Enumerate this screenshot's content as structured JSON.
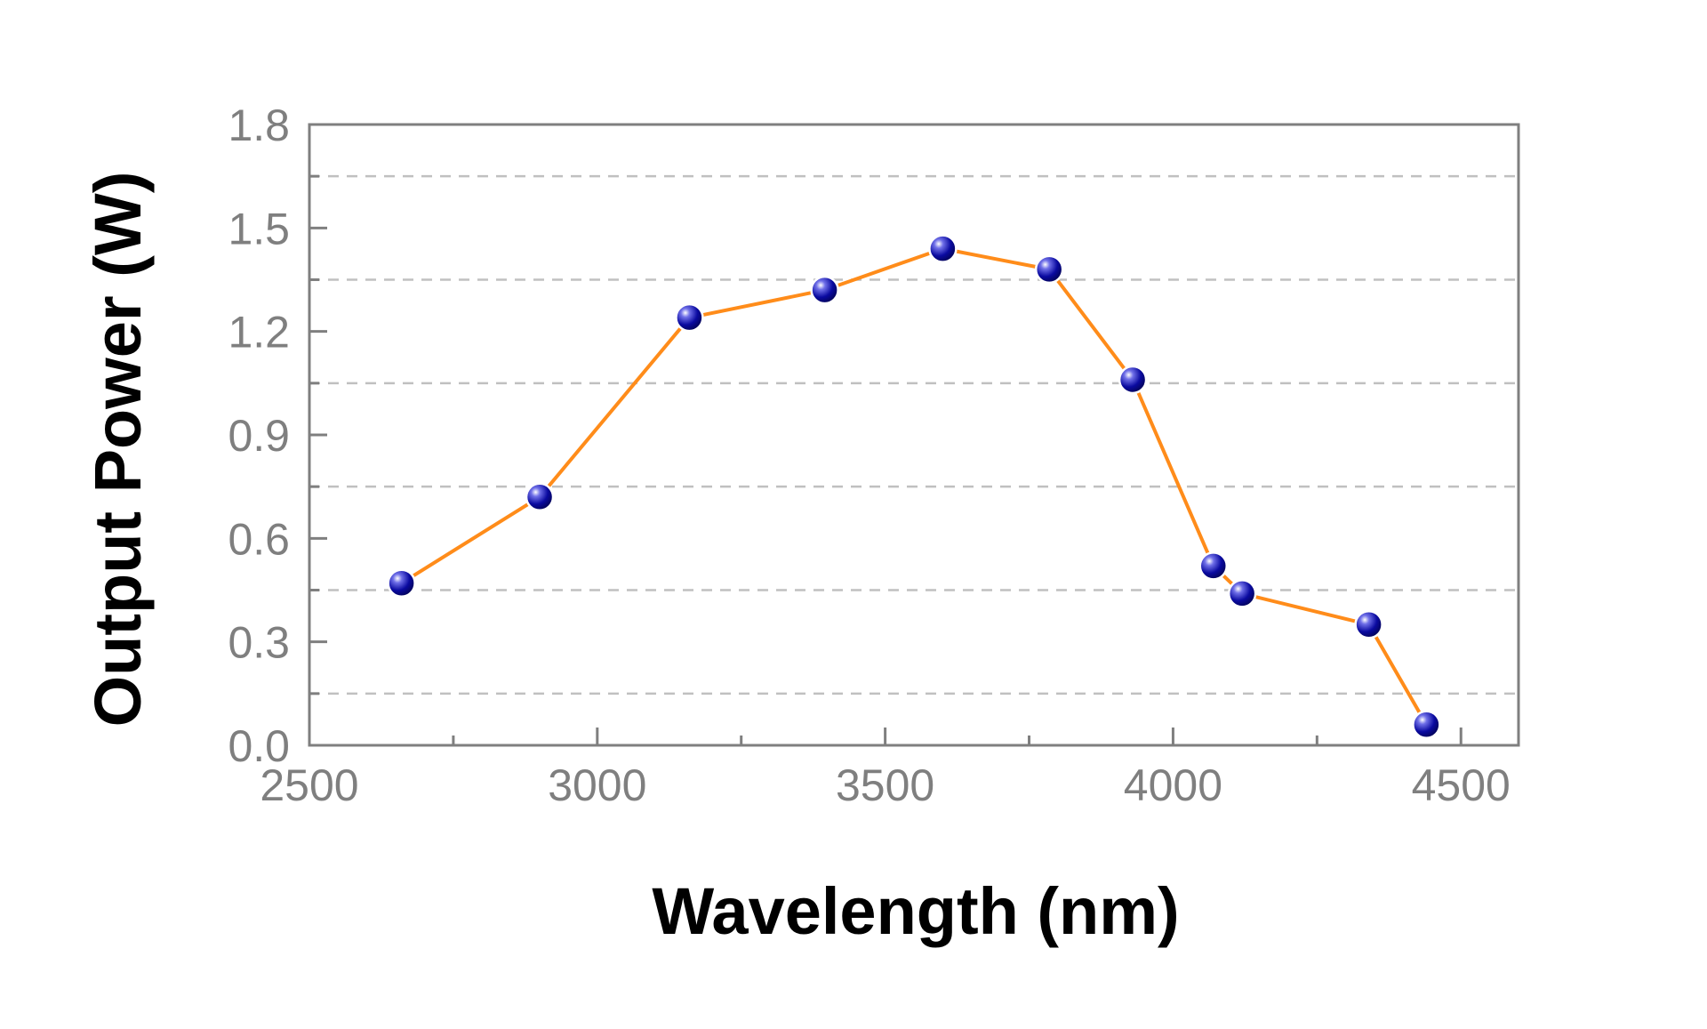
{
  "chart_data": {
    "type": "line",
    "title": "",
    "xlabel": "Wavelength (nm)",
    "ylabel": "Output Power (W)",
    "xlim": [
      2500,
      4600
    ],
    "ylim": [
      0,
      1.8
    ],
    "x_ticks": [
      "2500",
      "3000",
      "3500",
      "4000",
      "4500"
    ],
    "y_ticks": [
      "0.0",
      "0.3",
      "0.6",
      "0.9",
      "1.2",
      "1.5",
      "1.8"
    ],
    "grid": "horizontal dashed",
    "series": [
      {
        "x": [
          2660,
          2900,
          3160,
          3395,
          3600,
          3785,
          3930,
          4070,
          4120,
          4340,
          4440
        ],
        "y": [
          0.47,
          0.72,
          1.24,
          1.32,
          1.44,
          1.38,
          1.06,
          0.52,
          0.44,
          0.35,
          0.06
        ]
      }
    ],
    "colors": {
      "line": "#ff8c1a",
      "marker": "#0a0aa0",
      "axis": "#7f7f7f",
      "grid": "#c0c0c0"
    }
  }
}
